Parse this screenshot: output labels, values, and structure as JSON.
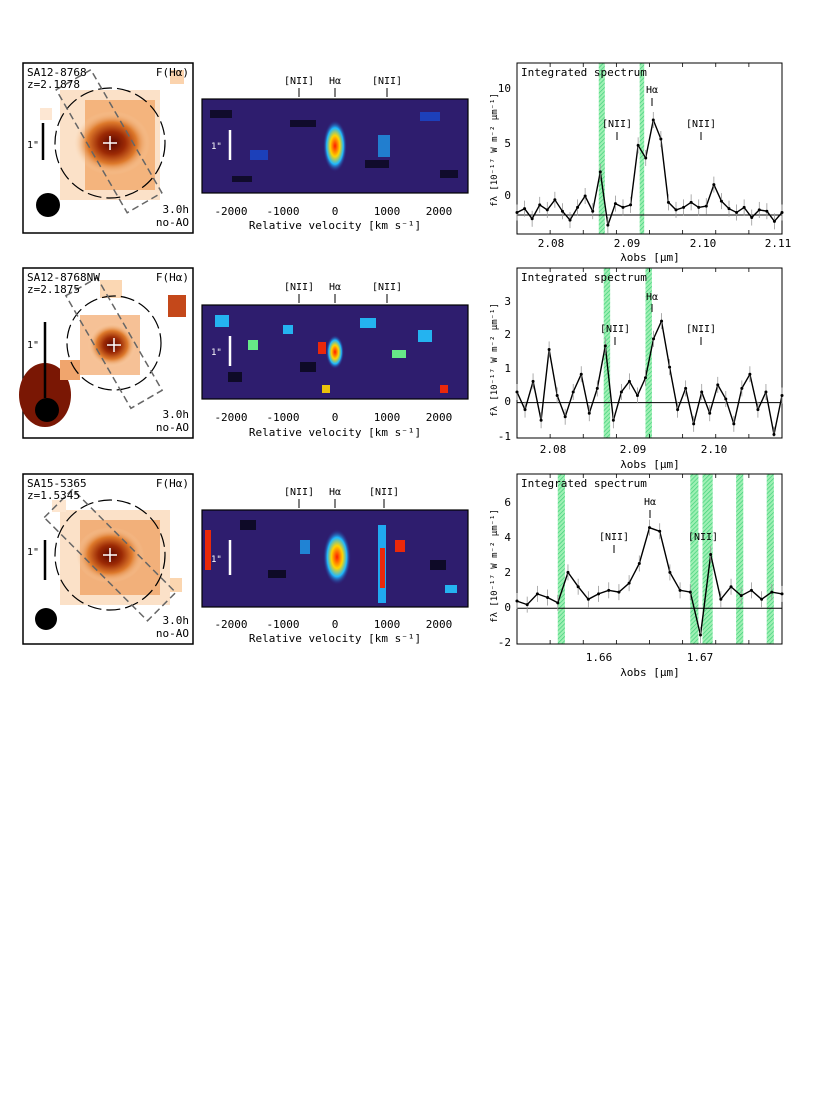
{
  "figure": {
    "rows": [
      {
        "id": "row1",
        "map": {
          "name": "SA12-8768",
          "redshift": "z=2.1878",
          "flux_label": "F(Hα)",
          "scale_label": "1\"",
          "exposure": "3.0h",
          "mode": "no-AO"
        },
        "pv": {
          "lines": [
            "[NII]",
            "Hα",
            "[NII]"
          ],
          "scale_label": "1\"",
          "xlabel": "Relative velocity  [km s⁻¹]",
          "xticks": [
            "-2000",
            "-1000",
            "0",
            "1000",
            "2000"
          ]
        },
        "spectrum": {
          "title": "Integrated spectrum",
          "ylabel": "fλ [10⁻¹⁷ W m⁻² μm⁻¹]",
          "xlabel": "λobs  [μm]",
          "yticks": [
            "0",
            "5",
            "10"
          ],
          "xticks": [
            "2.08",
            "2.09",
            "2.10",
            "2.11"
          ],
          "line_labels": [
            "[NII]",
            "Hα",
            "[NII]"
          ]
        }
      },
      {
        "id": "row2",
        "map": {
          "name": "SA12-8768NW",
          "redshift": "z=2.1875",
          "flux_label": "F(Hα)",
          "scale_label": "1\"",
          "exposure": "3.0h",
          "mode": "no-AO"
        },
        "pv": {
          "lines": [
            "[NII]",
            "Hα",
            "[NII]"
          ],
          "scale_label": "1\"",
          "xlabel": "Relative velocity  [km s⁻¹]",
          "xticks": [
            "-2000",
            "-1000",
            "0",
            "1000",
            "2000"
          ]
        },
        "spectrum": {
          "title": "Integrated spectrum",
          "ylabel": "fλ [10⁻¹⁷ W m⁻² μm⁻¹]",
          "xlabel": "λobs  [μm]",
          "yticks": [
            "-1",
            "0",
            "1",
            "2",
            "3"
          ],
          "xticks": [
            "2.08",
            "2.09",
            "2.10"
          ],
          "line_labels": [
            "[NII]",
            "Hα",
            "[NII]"
          ]
        }
      },
      {
        "id": "row3",
        "map": {
          "name": "SA15-5365",
          "redshift": "z=1.5345",
          "flux_label": "F(Hα)",
          "scale_label": "1\"",
          "exposure": "3.0h",
          "mode": "no-AO"
        },
        "pv": {
          "lines": [
            "[NII]",
            "Hα",
            "[NII]"
          ],
          "scale_label": "1\"",
          "xlabel": "Relative velocity  [km s⁻¹]",
          "xticks": [
            "-2000",
            "-1000",
            "0",
            "1000",
            "2000"
          ]
        },
        "spectrum": {
          "title": "Integrated spectrum",
          "ylabel": "fλ [10⁻¹⁷ W m⁻² μm⁻¹]",
          "xlabel": "λobs  [μm]",
          "yticks": [
            "-2",
            "0",
            "2",
            "4",
            "6"
          ],
          "xticks": [
            "1.66",
            "1.67"
          ],
          "line_labels": [
            "[NII]",
            "Hα",
            "[NII]"
          ]
        }
      }
    ]
  },
  "chart_data": [
    {
      "type": "line",
      "title": "Integrated spectrum",
      "xlabel": "λobs [μm]",
      "ylabel": "fλ [10⁻¹⁷ W m⁻² μm⁻¹]",
      "xlim": [
        2.075,
        2.11
      ],
      "ylim": [
        -1.5,
        12
      ],
      "grid": false,
      "sky_bands": [
        [
          2.0858,
          2.0866
        ],
        [
          2.0912,
          2.0918
        ]
      ],
      "series": [
        {
          "x": [
            2.075,
            2.076,
            2.077,
            2.078,
            2.079,
            2.08,
            2.081,
            2.082,
            2.083,
            2.084,
            2.085,
            2.086,
            2.087,
            2.088,
            2.089,
            2.09,
            2.091,
            2.092,
            2.093,
            2.094,
            2.095,
            2.096,
            2.097,
            2.098,
            2.099,
            2.1,
            2.101,
            2.102,
            2.103,
            2.104,
            2.105,
            2.106,
            2.107,
            2.108,
            2.109,
            2.11
          ],
          "y": [
            0.2,
            0.5,
            -0.3,
            0.8,
            0.4,
            1.2,
            0.3,
            -0.4,
            0.6,
            1.5,
            0.3,
            3.4,
            -0.8,
            0.9,
            0.6,
            0.8,
            5.5,
            4.5,
            7.5,
            6.0,
            1.0,
            0.4,
            0.6,
            1.0,
            0.6,
            0.7,
            2.4,
            1.1,
            0.5,
            0.2,
            0.6,
            -0.2,
            0.4,
            0.3,
            -0.5,
            0.2
          ]
        }
      ]
    },
    {
      "type": "line",
      "title": "Integrated spectrum",
      "xlabel": "λobs [μm]",
      "ylabel": "fλ [10⁻¹⁷ W m⁻² μm⁻¹]",
      "xlim": [
        2.075,
        2.108
      ],
      "ylim": [
        -1,
        3.8
      ],
      "grid": false,
      "sky_bands": [
        [
          2.0858,
          2.0866
        ],
        [
          2.091,
          2.0918
        ]
      ],
      "series": [
        {
          "x": [
            2.075,
            2.076,
            2.077,
            2.078,
            2.079,
            2.08,
            2.081,
            2.082,
            2.083,
            2.084,
            2.085,
            2.086,
            2.087,
            2.088,
            2.089,
            2.09,
            2.091,
            2.092,
            2.093,
            2.094,
            2.095,
            2.096,
            2.097,
            2.098,
            2.099,
            2.1,
            2.101,
            2.102,
            2.103,
            2.104,
            2.105,
            2.106,
            2.107,
            2.108
          ],
          "y": [
            0.3,
            -0.2,
            0.6,
            -0.5,
            1.5,
            0.2,
            -0.4,
            0.3,
            0.8,
            -0.3,
            0.4,
            1.6,
            -0.5,
            0.3,
            0.6,
            0.2,
            0.7,
            1.8,
            2.3,
            1.0,
            -0.2,
            0.4,
            -0.6,
            0.3,
            -0.3,
            0.5,
            0.1,
            -0.6,
            0.4,
            0.8,
            -0.2,
            0.3,
            -0.9,
            0.2
          ]
        }
      ]
    },
    {
      "type": "line",
      "title": "Integrated spectrum",
      "xlabel": "λobs [μm]",
      "ylabel": "fλ [10⁻¹⁷ W m⁻² μm⁻¹]",
      "xlim": [
        1.6515,
        1.6775
      ],
      "ylim": [
        -2,
        7.5
      ],
      "grid": false,
      "sky_bands": [
        [
          1.6555,
          1.6562
        ],
        [
          1.6685,
          1.6693
        ],
        [
          1.6697,
          1.6707
        ],
        [
          1.673,
          1.6737
        ],
        [
          1.676,
          1.6767
        ]
      ],
      "series": [
        {
          "x": [
            1.6515,
            1.6525,
            1.6535,
            1.6545,
            1.6555,
            1.6565,
            1.6575,
            1.6585,
            1.6595,
            1.6605,
            1.6615,
            1.6625,
            1.6635,
            1.6645,
            1.6655,
            1.6665,
            1.6675,
            1.6685,
            1.6695,
            1.6705,
            1.6715,
            1.6725,
            1.6735,
            1.6745,
            1.6755,
            1.6765,
            1.6775
          ],
          "y": [
            0.4,
            0.2,
            0.8,
            0.6,
            0.3,
            2.0,
            1.2,
            0.5,
            0.8,
            1.0,
            0.9,
            1.4,
            2.5,
            4.5,
            4.3,
            2.0,
            1.0,
            0.9,
            -1.5,
            3.0,
            0.5,
            1.2,
            0.7,
            1.0,
            0.5,
            0.9,
            0.8
          ]
        }
      ]
    }
  ]
}
